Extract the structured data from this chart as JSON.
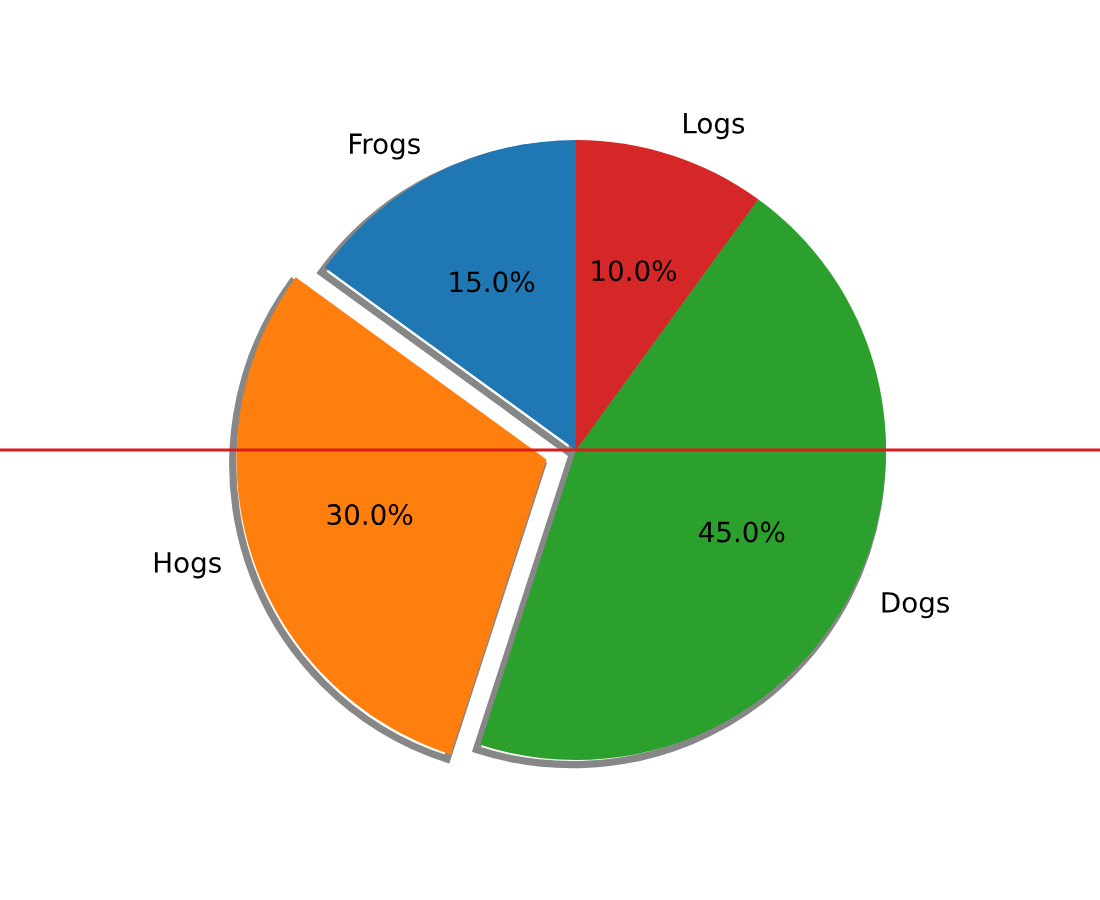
{
  "chart_data": {
    "type": "pie",
    "categories": [
      "Frogs",
      "Hogs",
      "Dogs",
      "Logs"
    ],
    "values": [
      15,
      30,
      45,
      10
    ],
    "colors": [
      "#1f77b4",
      "#ff7f0e",
      "#2ca02c",
      "#d62728"
    ],
    "value_labels": [
      "15.0%",
      "30.0%",
      "45.0%",
      "10.0%"
    ],
    "ref_lines": [
      {
        "axis": "y",
        "color": "#d81e1e"
      }
    ]
  }
}
